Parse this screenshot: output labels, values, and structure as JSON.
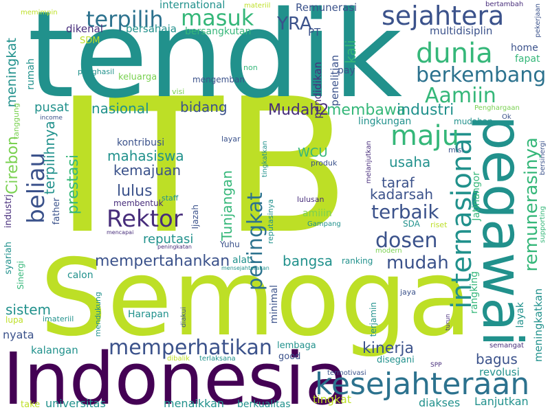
{
  "palette": {
    "background": "#ffffff",
    "yellow_green": "#bddf26",
    "green": "#7ad151",
    "emerald": "#35b779",
    "teal": "#21918c",
    "blue": "#2c728e",
    "indigo": "#3b528b",
    "deep_purple": "#472d7b",
    "dark_purple": "#440154"
  },
  "words": [
    {
      "text": "ITB",
      "color": "#bddf26"
    },
    {
      "text": "tendik",
      "color": "#21918c"
    },
    {
      "text": "Semoga",
      "color": "#bddf26"
    },
    {
      "text": "Indonesia",
      "color": "#440154"
    },
    {
      "text": "pegawai",
      "color": "#21918c"
    },
    {
      "text": "kesejahteraan",
      "color": "#2c728e"
    },
    {
      "text": "internasional",
      "color": "#21918c"
    },
    {
      "text": "sejahtera",
      "color": "#3b528b"
    },
    {
      "text": "dunia",
      "color": "#35b779"
    },
    {
      "text": "berkembang",
      "color": "#2c728e"
    },
    {
      "text": "terpilih",
      "color": "#2c728e"
    },
    {
      "text": "masuk",
      "color": "#35b779"
    },
    {
      "text": "Aamiin",
      "color": "#35b779"
    },
    {
      "text": "maju",
      "color": "#35b779"
    },
    {
      "text": "beliau",
      "color": "#3b528b"
    },
    {
      "text": "Rektor",
      "color": "#472d7b"
    },
    {
      "text": "memperhatikan",
      "color": "#3b528b"
    },
    {
      "text": "peringkat",
      "color": "#2c728e"
    },
    {
      "text": "terbaik",
      "color": "#3b528b"
    },
    {
      "text": "dosen",
      "color": "#3b528b"
    },
    {
      "text": "remunerasinya",
      "color": "#35b779"
    },
    {
      "text": "mempertahankan",
      "color": "#3b528b"
    },
    {
      "text": "YRA",
      "color": "#3b528b"
    },
    {
      "text": "Mudah2",
      "color": "#472d7b"
    },
    {
      "text": "membawa",
      "color": "#35b779"
    },
    {
      "text": "industri",
      "color": "#21918c"
    },
    {
      "text": "bidang",
      "color": "#3b528b"
    },
    {
      "text": "nasional",
      "color": "#21918c"
    },
    {
      "text": "pusat",
      "color": "#21918c"
    },
    {
      "text": "meningkat",
      "color": "#21918c"
    },
    {
      "text": "Cirebon",
      "color": "#7ad151"
    },
    {
      "text": "terpilihnya",
      "color": "#21918c"
    },
    {
      "text": "prestasi",
      "color": "#35b779"
    },
    {
      "text": "mahasiswa",
      "color": "#21918c"
    },
    {
      "text": "kemajuan",
      "color": "#3b528b"
    },
    {
      "text": "lulus",
      "color": "#3b528b"
    },
    {
      "text": "Tunjangan",
      "color": "#35b779"
    },
    {
      "text": "kadarsah",
      "color": "#3b528b"
    },
    {
      "text": "taraf",
      "color": "#3b528b"
    },
    {
      "text": "usaha",
      "color": "#21918c"
    },
    {
      "text": "WCU",
      "color": "#35b779"
    },
    {
      "text": "reputasi",
      "color": "#21918c"
    },
    {
      "text": "bangsa",
      "color": "#21918c"
    },
    {
      "text": "mudah",
      "color": "#3b528b"
    },
    {
      "text": "kinerja",
      "color": "#3b528b"
    },
    {
      "text": "bagus",
      "color": "#3b528b"
    },
    {
      "text": "sistem",
      "color": "#21918c"
    },
    {
      "text": "universitas",
      "color": "#21918c"
    },
    {
      "text": "menaikkan",
      "color": "#21918c"
    },
    {
      "text": "berkualitas",
      "color": "#21918c"
    },
    {
      "text": "Lanjutkan",
      "color": "#21918c"
    },
    {
      "text": "diakses",
      "color": "#21918c"
    },
    {
      "text": "tingkat",
      "color": "#bddf26"
    },
    {
      "text": "kalangan",
      "color": "#21918c"
    },
    {
      "text": "revolusi",
      "color": "#21918c"
    },
    {
      "text": "meningkatkan",
      "color": "#21918c"
    },
    {
      "text": "layak",
      "color": "#21918c"
    },
    {
      "text": "rangking",
      "color": "#35b779"
    },
    {
      "text": "Jatinangor",
      "color": "#35b779"
    },
    {
      "text": "penelitian",
      "color": "#3b528b"
    },
    {
      "text": "pendidikan",
      "color": "#472d7b"
    },
    {
      "text": "kali",
      "color": "#35b779"
    },
    {
      "text": "PT",
      "color": "#3b528b"
    },
    {
      "text": "international",
      "color": "#21918c"
    },
    {
      "text": "Remunerasi",
      "color": "#3b528b"
    },
    {
      "text": "dikenal",
      "color": "#472d7b"
    },
    {
      "text": "bersahaja",
      "color": "#21918c"
    },
    {
      "text": "bersangkutan",
      "color": "#35b779"
    },
    {
      "text": "multidisiplin",
      "color": "#3b528b"
    },
    {
      "text": "home",
      "color": "#3b528b"
    },
    {
      "text": "fapat",
      "color": "#35b779"
    },
    {
      "text": "pay",
      "color": "#3b528b"
    },
    {
      "text": "SDM",
      "color": "#bddf26"
    },
    {
      "text": "keluarga",
      "color": "#7ad151"
    },
    {
      "text": "rumah",
      "color": "#21918c"
    },
    {
      "text": "penghasil",
      "color": "#21918c"
    },
    {
      "text": "mengemban",
      "color": "#3b528b"
    },
    {
      "text": "visi",
      "color": "#7ad151"
    },
    {
      "text": "non",
      "color": "#35b779"
    },
    {
      "text": "memimpin",
      "color": "#bddf26"
    },
    {
      "text": "materiil",
      "color": "#bddf26"
    },
    {
      "text": "bertambah",
      "color": "#472d7b"
    },
    {
      "text": "pekerjaan",
      "color": "#3b528b"
    },
    {
      "text": "Penghargaan",
      "color": "#7ad151"
    },
    {
      "text": "Ok",
      "color": "#3b528b"
    },
    {
      "text": "mudahan",
      "color": "#21918c"
    },
    {
      "text": "lingkungan",
      "color": "#21918c"
    },
    {
      "text": "misi",
      "color": "#3b528b"
    },
    {
      "text": "bersinergi",
      "color": "#3b528b"
    },
    {
      "text": "melanjutkan",
      "color": "#472d7b"
    },
    {
      "text": "produk",
      "color": "#3b528b"
    },
    {
      "text": "kontribusi",
      "color": "#3b528b"
    },
    {
      "text": "layar",
      "color": "#3b528b"
    },
    {
      "text": "staff",
      "color": "#21918c"
    },
    {
      "text": "tingkatkan",
      "color": "#21918c"
    },
    {
      "text": "Ijazah",
      "color": "#3b528b"
    },
    {
      "text": "membentuk",
      "color": "#472d7b"
    },
    {
      "text": "father",
      "color": "#3b528b"
    },
    {
      "text": "industrj",
      "color": "#472d7b"
    },
    {
      "text": "tanggung",
      "color": "#7ad151"
    },
    {
      "text": "income",
      "color": "#3b528b"
    },
    {
      "text": "reputasinya",
      "color": "#21918c"
    },
    {
      "text": "lulusan",
      "color": "#472d7b"
    },
    {
      "text": "amiiin",
      "color": "#7ad151"
    },
    {
      "text": "Gampang",
      "color": "#21918c"
    },
    {
      "text": "SDA",
      "color": "#21918c"
    },
    {
      "text": "riset",
      "color": "#bddf26"
    },
    {
      "text": "supporting",
      "color": "#35b779"
    },
    {
      "text": "mencapai",
      "color": "#472d7b"
    },
    {
      "text": "peningkatan",
      "color": "#472d7b"
    },
    {
      "text": "Yuhu",
      "color": "#3b528b"
    },
    {
      "text": "modern",
      "color": "#7ad151"
    },
    {
      "text": "ranking",
      "color": "#21918c"
    },
    {
      "text": "mensejahterakan",
      "color": "#21918c"
    },
    {
      "text": "alat",
      "color": "#21918c"
    },
    {
      "text": "syariah",
      "color": "#21918c"
    },
    {
      "text": "Sinergi",
      "color": "#35b779"
    },
    {
      "text": "calon",
      "color": "#21918c"
    },
    {
      "text": "lupa",
      "color": "#bddf26"
    },
    {
      "text": "imateriil",
      "color": "#21918c"
    },
    {
      "text": "nyata",
      "color": "#3b528b"
    },
    {
      "text": "Harapan",
      "color": "#21918c"
    },
    {
      "text": "mendukung",
      "color": "#21918c"
    },
    {
      "text": "diakui",
      "color": "#3b528b"
    },
    {
      "text": "minimal",
      "color": "#3b528b"
    },
    {
      "text": "terjamin",
      "color": "#21918c"
    },
    {
      "text": "jaya",
      "color": "#3b528b"
    },
    {
      "text": "turun",
      "color": "#472d7b"
    },
    {
      "text": "semangat",
      "color": "#472d7b"
    },
    {
      "text": "lembaga",
      "color": "#21918c"
    },
    {
      "text": "good",
      "color": "#3b528b"
    },
    {
      "text": "dibalik",
      "color": "#bddf26"
    },
    {
      "text": "terlaksana",
      "color": "#21918c"
    },
    {
      "text": "disegani",
      "color": "#21918c"
    },
    {
      "text": "termotivasi",
      "color": "#3b528b"
    },
    {
      "text": "SPP",
      "color": "#472d7b"
    },
    {
      "text": "take",
      "color": "#bddf26"
    }
  ]
}
